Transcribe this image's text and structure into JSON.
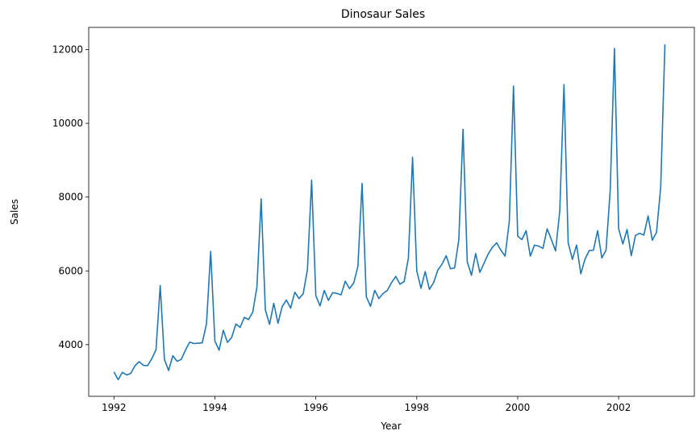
{
  "chart_data": {
    "type": "line",
    "title": "Dinosaur Sales",
    "xlabel": "Year",
    "ylabel": "Sales",
    "xlim": [
      1991.5,
      2003.5
    ],
    "ylim": [
      2600,
      12600
    ],
    "xticks": [
      1992,
      1994,
      1996,
      1998,
      2000,
      2002
    ],
    "xtick_labels": [
      "1992",
      "1994",
      "1996",
      "1998",
      "2000",
      "2002"
    ],
    "yticks": [
      4000,
      6000,
      8000,
      10000,
      12000
    ],
    "ytick_labels": [
      "4000",
      "6000",
      "8000",
      "10000",
      "12000"
    ],
    "grid": false,
    "series": [
      {
        "color": "#1f77b4",
        "x_start": "1992-01",
        "frequency": "monthly",
        "values": [
          3260,
          3050,
          3250,
          3180,
          3220,
          3430,
          3540,
          3440,
          3430,
          3620,
          3860,
          5600,
          3600,
          3300,
          3700,
          3550,
          3600,
          3850,
          4070,
          4030,
          4040,
          4050,
          4560,
          6530,
          4100,
          3850,
          4390,
          4060,
          4200,
          4560,
          4470,
          4740,
          4680,
          4880,
          5570,
          7950,
          4940,
          4550,
          5120,
          4580,
          5030,
          5210,
          4990,
          5420,
          5250,
          5380,
          6030,
          8460,
          5330,
          5050,
          5470,
          5200,
          5410,
          5390,
          5350,
          5720,
          5520,
          5670,
          6120,
          8370,
          5300,
          5040,
          5470,
          5250,
          5390,
          5470,
          5680,
          5850,
          5640,
          5710,
          6340,
          9080,
          6000,
          5530,
          5980,
          5500,
          5680,
          6020,
          6180,
          6410,
          6060,
          6080,
          6850,
          9840,
          6250,
          5880,
          6470,
          5960,
          6210,
          6460,
          6640,
          6760,
          6560,
          6400,
          7340,
          11010,
          6940,
          6850,
          7090,
          6400,
          6700,
          6670,
          6610,
          7140,
          6850,
          6540,
          7620,
          11050,
          6760,
          6310,
          6700,
          5920,
          6320,
          6550,
          6560,
          7090,
          6350,
          6560,
          8190,
          12030,
          7140,
          6730,
          7120,
          6410,
          6960,
          7020,
          6970,
          7490,
          6830,
          7040,
          8270,
          12140
        ]
      }
    ]
  }
}
